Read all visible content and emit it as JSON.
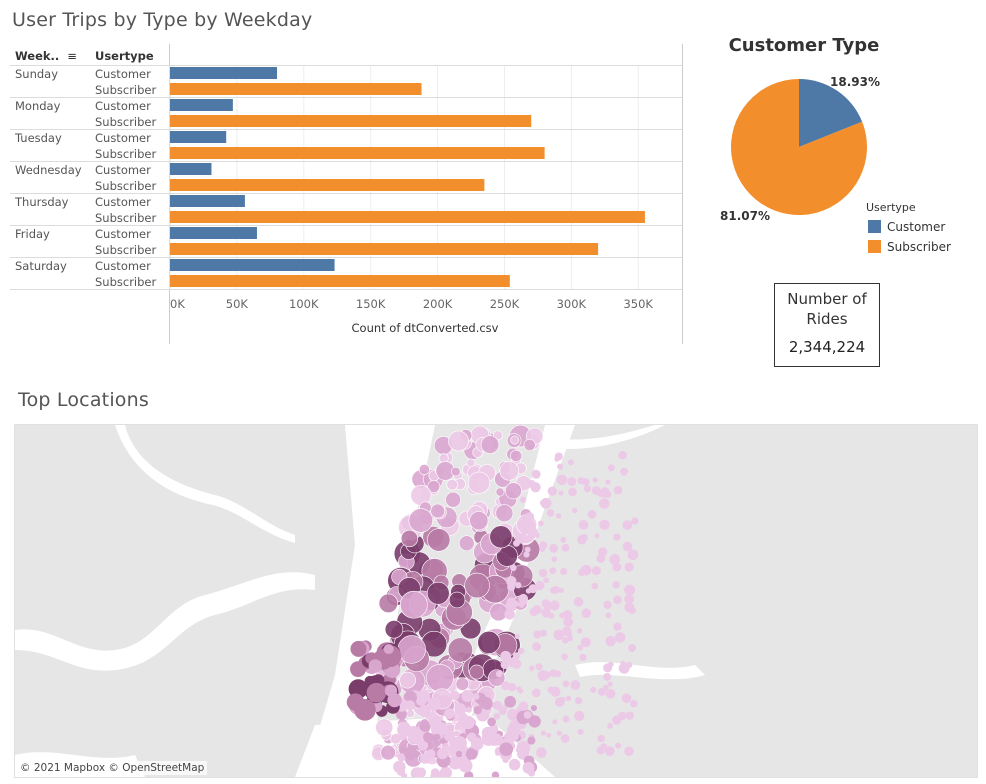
{
  "weekday_panel": {
    "title": "User Trips by Type by Weekday",
    "col_weekday": "Week..",
    "col_usertype": "Usertype"
  },
  "chart_data": [
    {
      "type": "bar",
      "orientation": "horizontal",
      "title": "User Trips by Type by Weekday",
      "xlabel": "Count of dtConverted.csv",
      "categories": [
        "Sunday",
        "Monday",
        "Tuesday",
        "Wednesday",
        "Thursday",
        "Friday",
        "Saturday"
      ],
      "series": [
        {
          "name": "Customer",
          "color": "#4e79a7",
          "values": [
            80000,
            47000,
            42000,
            31000,
            56000,
            65000,
            123000
          ]
        },
        {
          "name": "Subscriber",
          "color": "#f28e2b",
          "values": [
            188000,
            270000,
            280000,
            235000,
            355000,
            320000,
            254000
          ]
        }
      ],
      "xlim": [
        0,
        370000
      ],
      "ticks": [
        0,
        50000,
        100000,
        150000,
        200000,
        250000,
        300000,
        350000
      ],
      "tick_labels": [
        "0K",
        "50K",
        "100K",
        "150K",
        "200K",
        "250K",
        "300K",
        "350K"
      ]
    },
    {
      "type": "pie",
      "title": "Customer Type",
      "legend_title": "Usertype",
      "legend_position": "bottom-right",
      "slices": [
        {
          "name": "Customer",
          "value": 18.93,
          "label": "18.93%",
          "color": "#4e79a7"
        },
        {
          "name": "Subscriber",
          "value": 81.07,
          "label": "81.07%",
          "color": "#f28e2b"
        }
      ]
    }
  ],
  "kpi": {
    "label_line1": "Number of",
    "label_line2": "Rides",
    "value": "2,344,224"
  },
  "map": {
    "title": "Top Locations",
    "attribution": "© 2021 Mapbox © OpenStreetMap",
    "dot_colors": [
      "#ecc9e6",
      "#d9a6cf",
      "#b77ba5",
      "#7a3d6b"
    ]
  }
}
